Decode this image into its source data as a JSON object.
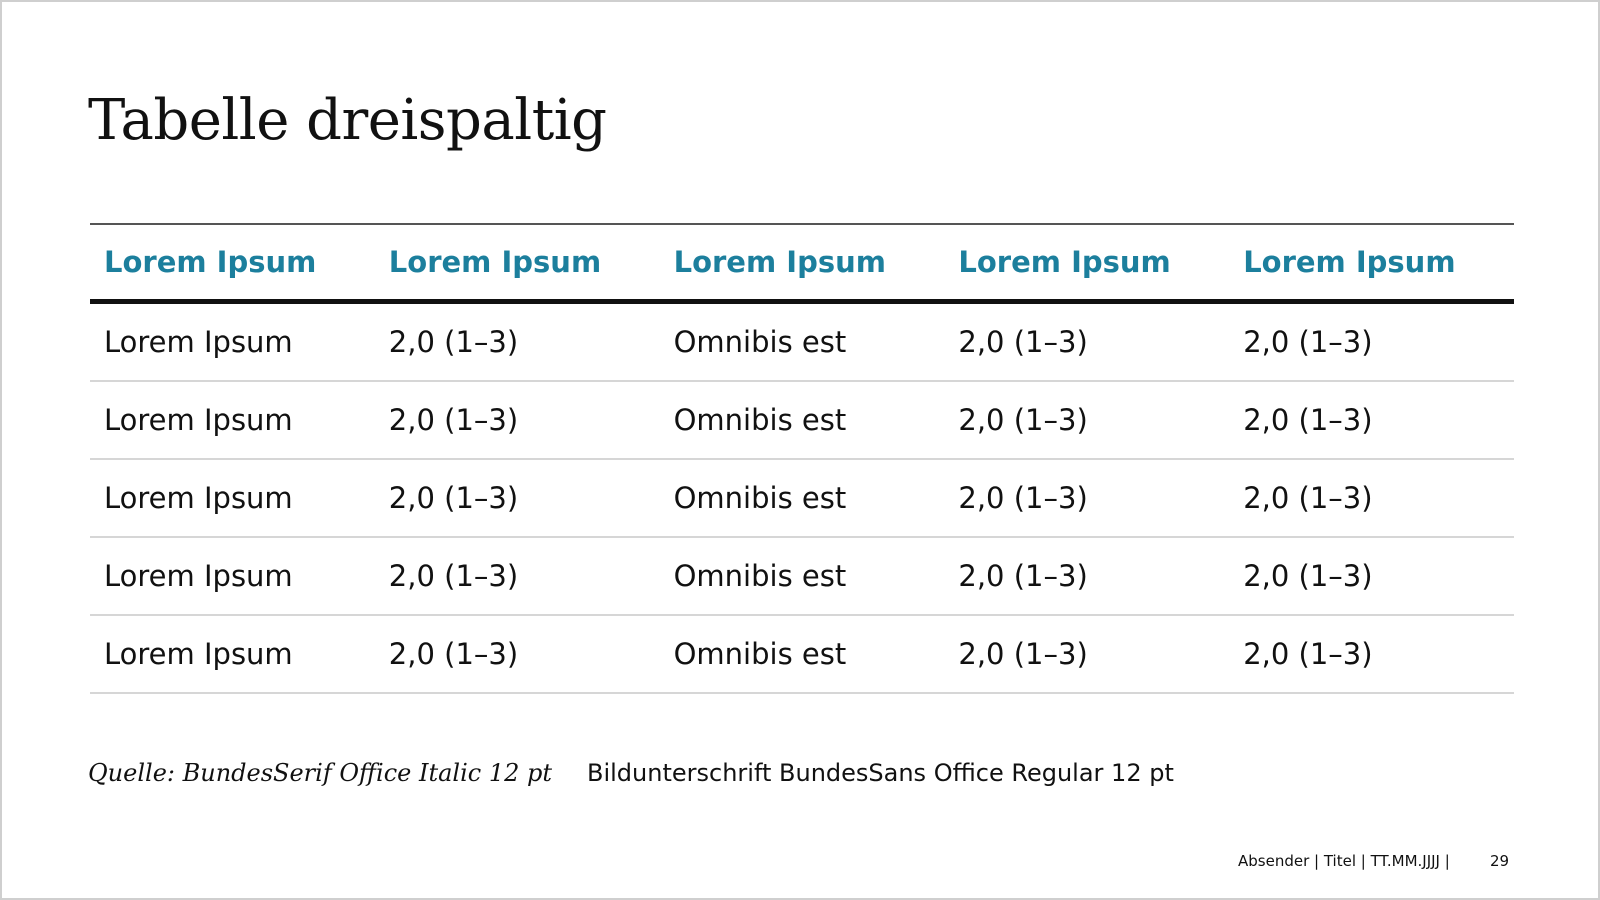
{
  "slide": {
    "title": "Tabelle dreispaltig",
    "source_note": "Quelle: BundesSerif Office Italic 12 pt",
    "caption": "Bildunterschrift BundesSans Office Regular 12 pt",
    "footer": "Absender | Titel | TT.MM.JJJJ |",
    "page_number": "29"
  },
  "table": {
    "headers": [
      "Lorem Ipsum",
      "Lorem Ipsum",
      "Lorem Ipsum",
      "Lorem Ipsum",
      "Lorem Ipsum"
    ],
    "rows": [
      [
        "Lorem Ipsum",
        "2,0 (1–3)",
        "Omnibis est",
        "2,0 (1–3)",
        "2,0 (1–3)"
      ],
      [
        "Lorem Ipsum",
        "2,0 (1–3)",
        "Omnibis est",
        "2,0 (1–3)",
        "2,0 (1–3)"
      ],
      [
        "Lorem Ipsum",
        "2,0 (1–3)",
        "Omnibis est",
        "2,0 (1–3)",
        "2,0 (1–3)"
      ],
      [
        "Lorem Ipsum",
        "2,0 (1–3)",
        "Omnibis est",
        "2,0 (1–3)",
        "2,0 (1–3)"
      ],
      [
        "Lorem Ipsum",
        "2,0 (1–3)",
        "Omnibis est",
        "2,0 (1–3)",
        "2,0 (1–3)"
      ]
    ]
  },
  "colors": {
    "header_text": "#1c7f9d",
    "body_text": "#111111",
    "row_divider": "#d6d6d6"
  }
}
